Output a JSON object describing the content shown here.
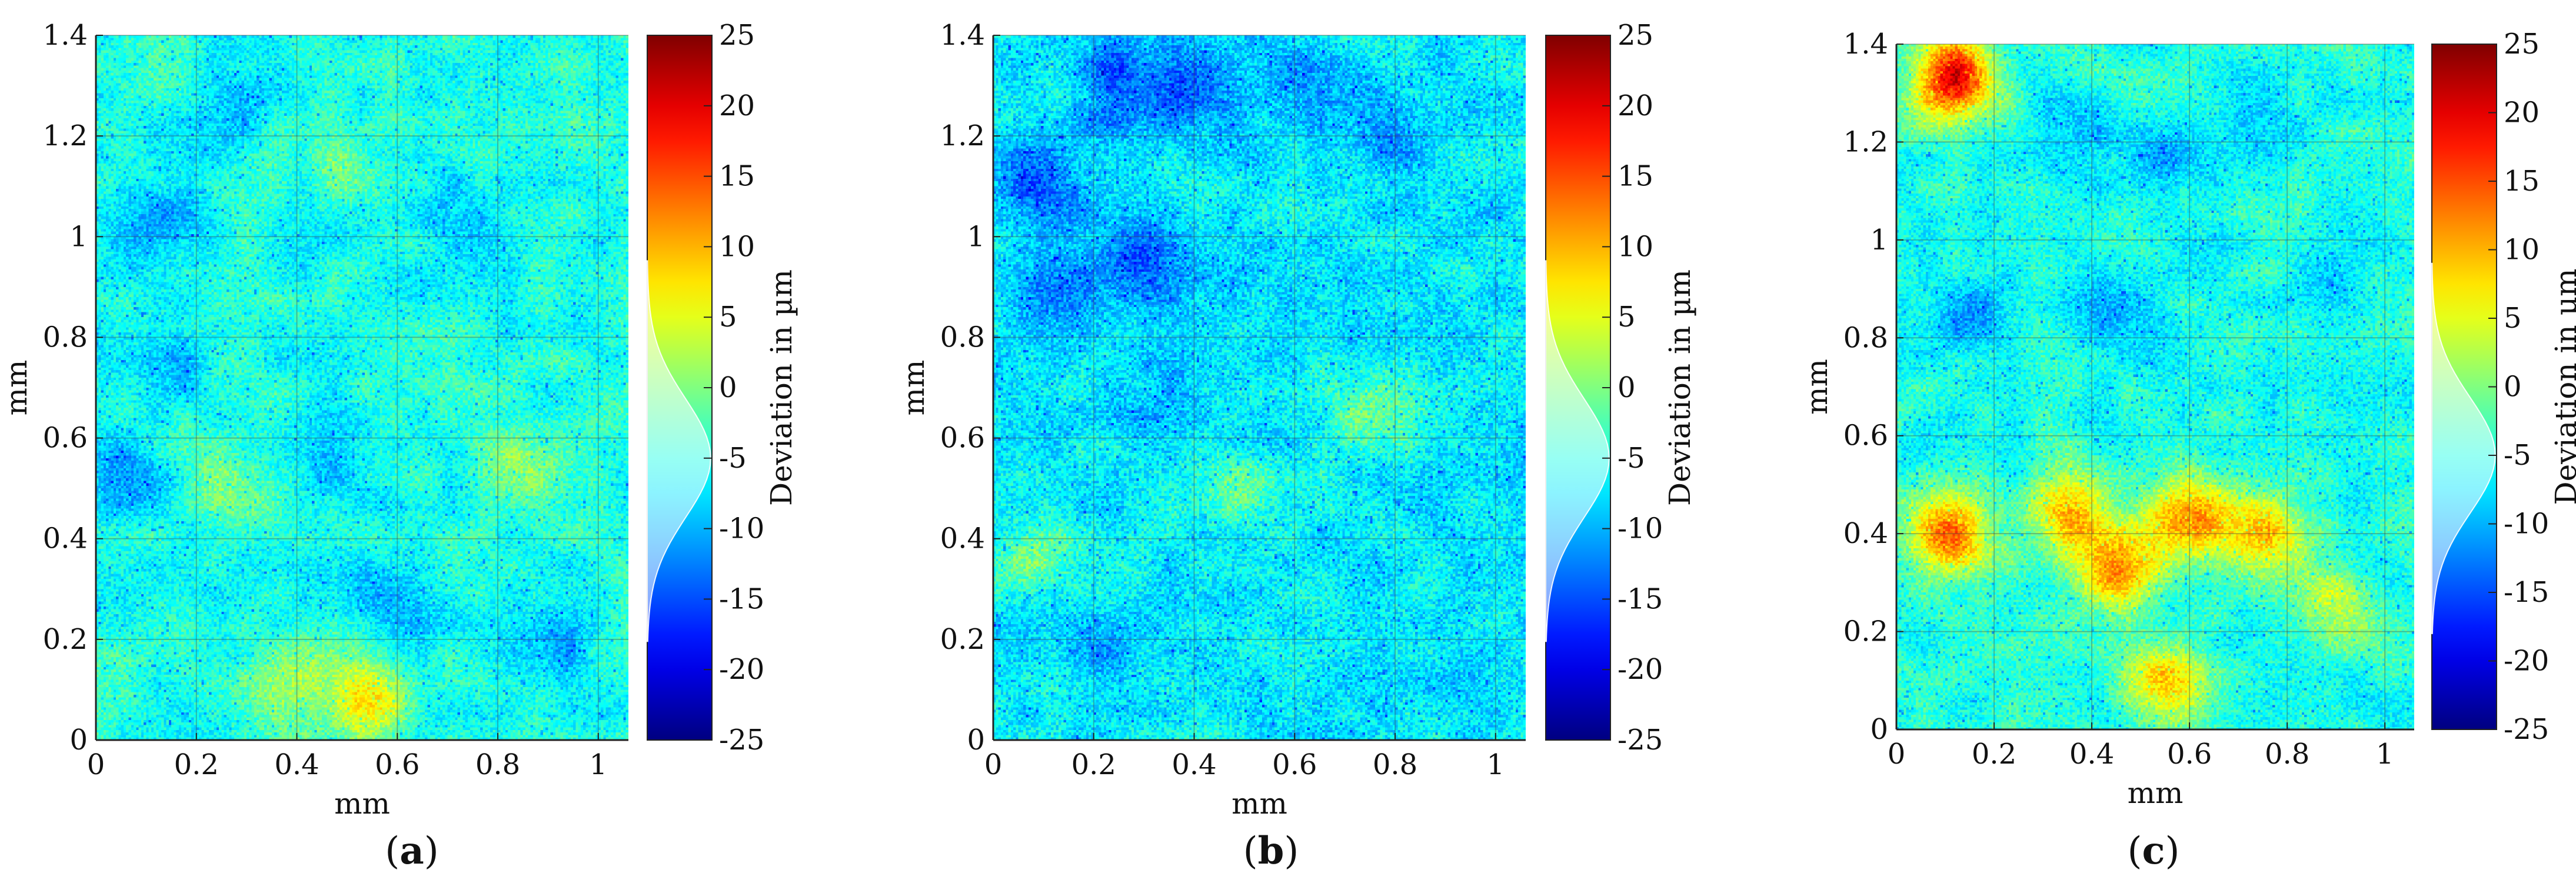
{
  "figure": {
    "panels": [
      "a",
      "b",
      "c"
    ],
    "colorbar_label": "Deviation in µm"
  },
  "chart_data": [
    {
      "type": "heatmap",
      "panel": "a",
      "xlabel": "mm",
      "ylabel": "mm",
      "xlim": [
        0,
        1.06
      ],
      "ylim": [
        0,
        1.4
      ],
      "xticks": [
        "0",
        "0.2",
        "0.4",
        "0.6",
        "0.8",
        "1"
      ],
      "yticks": [
        "0",
        "0.2",
        "0.4",
        "0.6",
        "0.8",
        "1",
        "1.2",
        "1.4"
      ],
      "xtick_values": [
        0,
        0.2,
        0.4,
        0.6,
        0.8,
        1
      ],
      "ytick_values": [
        0,
        0.2,
        0.4,
        0.6,
        0.8,
        1,
        1.2,
        1.4
      ],
      "colorbar": {
        "label": "Deviation in µm",
        "range": [
          -25,
          25
        ],
        "ticks": [
          "-25",
          "-20",
          "-15",
          "-10",
          "-5",
          "0",
          "5",
          "10",
          "15",
          "20",
          "25"
        ],
        "tick_values": [
          -25,
          -20,
          -15,
          -10,
          -5,
          0,
          5,
          10,
          15,
          20,
          25
        ],
        "colormap": "jet"
      },
      "grid": true,
      "base_deviation_um": -5,
      "noise_um": 3.0,
      "features": [
        {
          "x": 0.12,
          "y": 1.03,
          "value_um": -11
        },
        {
          "x": 0.05,
          "y": 0.52,
          "value_um": -11
        },
        {
          "x": 0.6,
          "y": 0.28,
          "value_um": -11
        },
        {
          "x": 0.9,
          "y": 0.2,
          "value_um": -11
        },
        {
          "x": 0.5,
          "y": 1.05,
          "value_um": -10
        },
        {
          "x": 0.15,
          "y": 0.75,
          "value_um": -9
        },
        {
          "x": 0.72,
          "y": 1.05,
          "value_um": -9
        },
        {
          "x": 0.25,
          "y": 1.25,
          "value_um": -9
        },
        {
          "x": 0.45,
          "y": 0.55,
          "value_um": -9
        },
        {
          "x": 0.38,
          "y": 0.12,
          "value_um": 1
        },
        {
          "x": 0.5,
          "y": 1.1,
          "value_um": 1
        },
        {
          "x": 0.85,
          "y": 0.55,
          "value_um": 0
        },
        {
          "x": 0.25,
          "y": 0.5,
          "value_um": 0
        },
        {
          "x": 0.53,
          "y": 0.08,
          "value_um": 8
        }
      ]
    },
    {
      "type": "heatmap",
      "panel": "b",
      "xlabel": "mm",
      "ylabel": "mm",
      "xlim": [
        0,
        1.06
      ],
      "ylim": [
        0,
        1.4
      ],
      "xticks": [
        "0",
        "0.2",
        "0.4",
        "0.6",
        "0.8",
        "1"
      ],
      "yticks": [
        "0",
        "0.2",
        "0.4",
        "0.6",
        "0.8",
        "1",
        "1.2",
        "1.4"
      ],
      "xtick_values": [
        0,
        0.2,
        0.4,
        0.6,
        0.8,
        1
      ],
      "ytick_values": [
        0,
        0.2,
        0.4,
        0.6,
        0.8,
        1,
        1.2,
        1.4
      ],
      "colorbar": {
        "label": "Deviation in µm",
        "range": [
          -25,
          25
        ],
        "ticks": [
          "-25",
          "-20",
          "-15",
          "-10",
          "-5",
          "0",
          "5",
          "10",
          "15",
          "20",
          "25"
        ],
        "tick_values": [
          -25,
          -20,
          -15,
          -10,
          -5,
          0,
          5,
          10,
          15,
          20,
          25
        ],
        "colormap": "jet"
      },
      "grid": true,
      "base_deviation_um": -7,
      "noise_um": 3.5,
      "features": [
        {
          "x": 0.25,
          "y": 1.3,
          "value_um": -15
        },
        {
          "x": 0.1,
          "y": 1.1,
          "value_um": -14
        },
        {
          "x": 0.4,
          "y": 1.28,
          "value_um": -13
        },
        {
          "x": 0.8,
          "y": 1.2,
          "value_um": -12
        },
        {
          "x": 0.3,
          "y": 0.95,
          "value_um": -14
        },
        {
          "x": 0.1,
          "y": 0.9,
          "value_um": -13
        },
        {
          "x": 0.6,
          "y": 1.3,
          "value_um": -12
        },
        {
          "x": 0.08,
          "y": 0.37,
          "value_um": 0
        },
        {
          "x": 0.5,
          "y": 0.5,
          "value_um": -1
        },
        {
          "x": 0.75,
          "y": 0.65,
          "value_um": -2
        },
        {
          "x": 0.2,
          "y": 0.2,
          "value_um": -11
        },
        {
          "x": 0.35,
          "y": 0.7,
          "value_um": -10
        }
      ]
    },
    {
      "type": "heatmap",
      "panel": "c",
      "xlabel": "mm",
      "ylabel": "mm",
      "xlim": [
        0,
        1.06
      ],
      "ylim": [
        0,
        1.4
      ],
      "xticks": [
        "0",
        "0.2",
        "0.4",
        "0.6",
        "0.8",
        "1"
      ],
      "yticks": [
        "0",
        "0.2",
        "0.4",
        "0.6",
        "0.8",
        "1",
        "1.2",
        "1.4"
      ],
      "xtick_values": [
        0,
        0.2,
        0.4,
        0.6,
        0.8,
        1
      ],
      "ytick_values": [
        0,
        0.2,
        0.4,
        0.6,
        0.8,
        1,
        1.2,
        1.4
      ],
      "colorbar": {
        "label": "Deviation in µm",
        "range": [
          -25,
          25
        ],
        "ticks": [
          "-25",
          "-20",
          "-15",
          "-10",
          "-5",
          "0",
          "5",
          "10",
          "15",
          "20",
          "25"
        ],
        "tick_values": [
          -25,
          -20,
          -15,
          -10,
          -5,
          0,
          5,
          10,
          15,
          20,
          25
        ],
        "colormap": "jet"
      },
      "grid": true,
      "base_deviation_um": -5,
      "noise_um": 3.0,
      "features": [
        {
          "x": 0.55,
          "y": 1.18,
          "value_um": -11
        },
        {
          "x": 0.35,
          "y": 1.2,
          "value_um": -10
        },
        {
          "x": 0.15,
          "y": 0.85,
          "value_um": -10
        },
        {
          "x": 0.45,
          "y": 0.85,
          "value_um": -10
        },
        {
          "x": 0.75,
          "y": 1.22,
          "value_um": -9
        },
        {
          "x": 0.9,
          "y": 0.9,
          "value_um": -8
        },
        {
          "x": 0.6,
          "y": 0.43,
          "value_um": 12
        },
        {
          "x": 0.35,
          "y": 0.45,
          "value_um": 10
        },
        {
          "x": 0.11,
          "y": 0.4,
          "value_um": 13
        },
        {
          "x": 0.45,
          "y": 0.33,
          "value_um": 11
        },
        {
          "x": 0.75,
          "y": 0.4,
          "value_um": 9
        },
        {
          "x": 0.55,
          "y": 0.1,
          "value_um": 8
        },
        {
          "x": 0.12,
          "y": 1.33,
          "value_um": 20
        },
        {
          "x": 0.9,
          "y": 0.25,
          "value_um": 4
        }
      ]
    }
  ]
}
